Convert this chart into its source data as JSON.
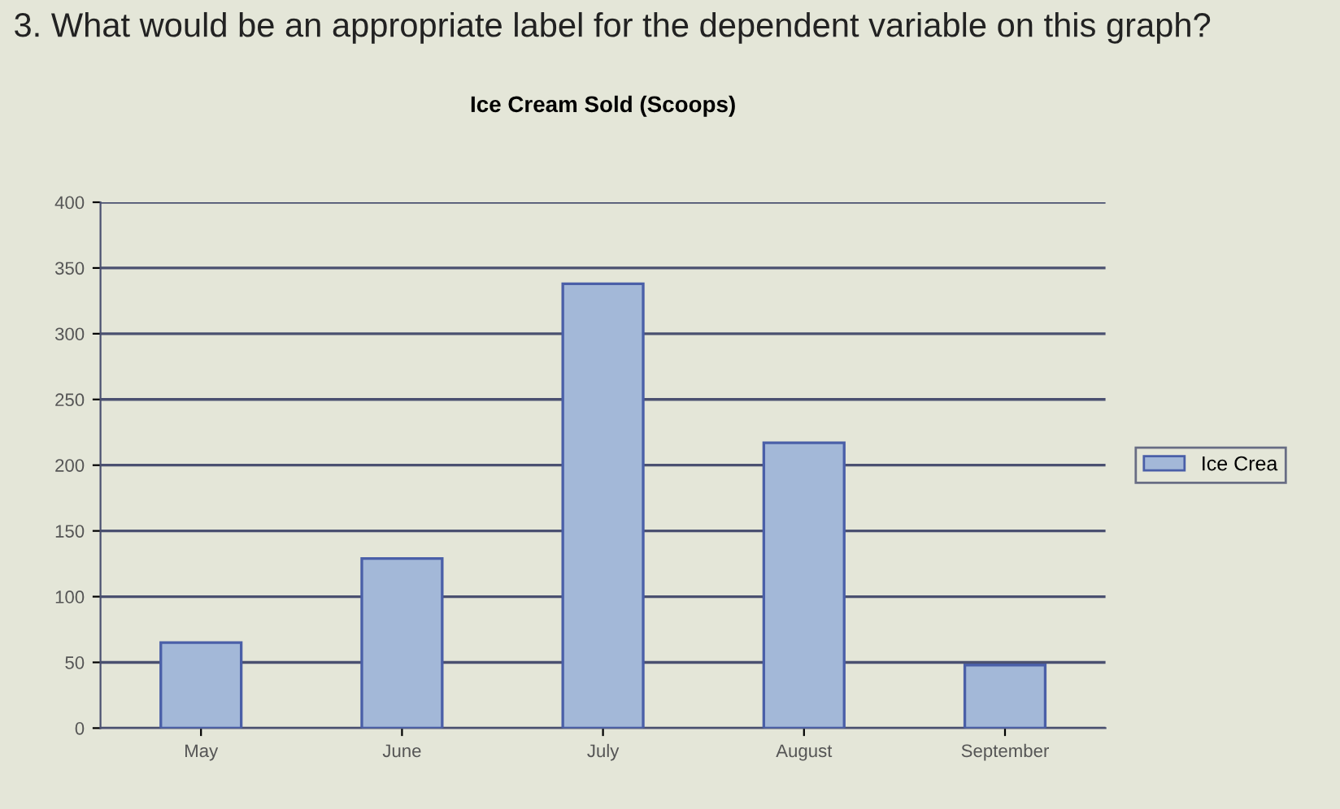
{
  "chart_data": {
    "type": "bar",
    "title": "Ice Cream Sold (Scoops)",
    "annotations": [
      "3. What would be an appropriate label for the dependent variable on this graph?"
    ],
    "categories": [
      "May",
      "June",
      "July",
      "August",
      "September"
    ],
    "series": [
      {
        "name": "Ice Crea",
        "color": "#a3b8d8",
        "values": [
          65,
          129,
          338,
          217,
          48
        ]
      }
    ],
    "ylim": [
      0,
      400
    ],
    "yticks": [
      0,
      50,
      100,
      150,
      200,
      250,
      300,
      350,
      400
    ],
    "grid": "y",
    "legend": "right"
  }
}
